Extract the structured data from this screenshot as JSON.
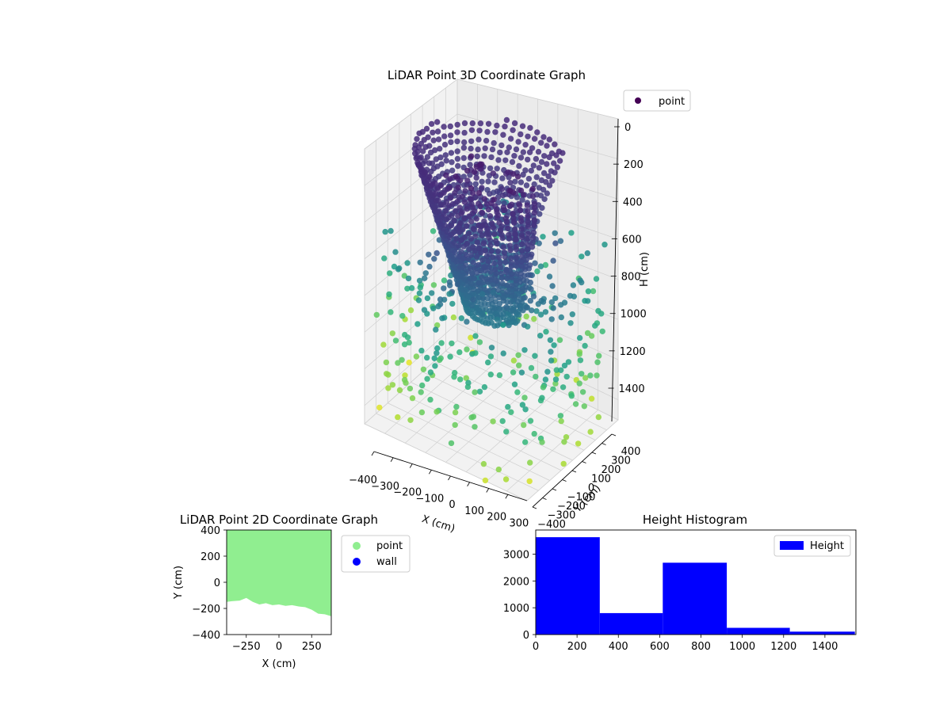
{
  "colors": {
    "point_2d": "#90ee90",
    "wall_2d": "#0000ff",
    "histogram": "#0000ff",
    "legend_3d_point": "#440154",
    "colormap": "viridis"
  },
  "chart_data": [
    {
      "type": "scatter3d",
      "title": "LiDAR Point 3D Coordinate Graph",
      "xlabel": "X (cm)",
      "ylabel": "Y (cm)",
      "zlabel": "H (cm)",
      "x_ticks": [
        "−400",
        "−300",
        "−200",
        "−100",
        "0",
        "100",
        "200",
        "300"
      ],
      "y_ticks": [
        "−400",
        "−300",
        "−200",
        "−100",
        "0",
        "100",
        "200",
        "300",
        "400"
      ],
      "z_ticks": [
        "0",
        "200",
        "400",
        "600",
        "800",
        "1000",
        "1200",
        "1400"
      ],
      "xlim": [
        -400,
        400
      ],
      "ylim": [
        -400,
        400
      ],
      "zlim": [
        0,
        1500
      ],
      "z_inverted": true,
      "legend": [
        "point"
      ],
      "legend_position": "upper-right",
      "grid": true
    },
    {
      "type": "scatter",
      "title": "LiDAR Point 2D Coordinate Graph",
      "xlabel": "X (cm)",
      "ylabel": "Y (cm)",
      "x_ticks": [
        "−250",
        "0",
        "250"
      ],
      "y_ticks": [
        "400",
        "200",
        "0",
        "−200",
        "−400"
      ],
      "xlim": [
        -400,
        400
      ],
      "ylim": [
        -400,
        400
      ],
      "legend": [
        "point",
        "wall"
      ],
      "legend_position": "outside-right",
      "boundary_x": [
        -400,
        -360,
        -300,
        -250,
        -200,
        -150,
        -100,
        -50,
        0,
        50,
        100,
        150,
        200,
        250,
        300,
        350,
        400
      ],
      "boundary_y": [
        -150,
        -145,
        -140,
        -120,
        -150,
        -170,
        -160,
        -175,
        -170,
        -180,
        -175,
        -185,
        -190,
        -210,
        -240,
        -245,
        -260
      ]
    },
    {
      "type": "bar",
      "title": "Height Histogram",
      "series": [
        {
          "name": "Height"
        }
      ],
      "bin_edges": [
        0,
        310,
        615,
        925,
        1230,
        1545
      ],
      "values": [
        3630,
        800,
        2680,
        250,
        110
      ],
      "x_ticks": [
        "0",
        "200",
        "400",
        "600",
        "800",
        "1000",
        "1200",
        "1400"
      ],
      "y_ticks": [
        "0",
        "1000",
        "2000",
        "3000"
      ],
      "xlim": [
        0,
        1550
      ],
      "ylim": [
        0,
        3900
      ],
      "legend_position": "upper-right"
    }
  ]
}
